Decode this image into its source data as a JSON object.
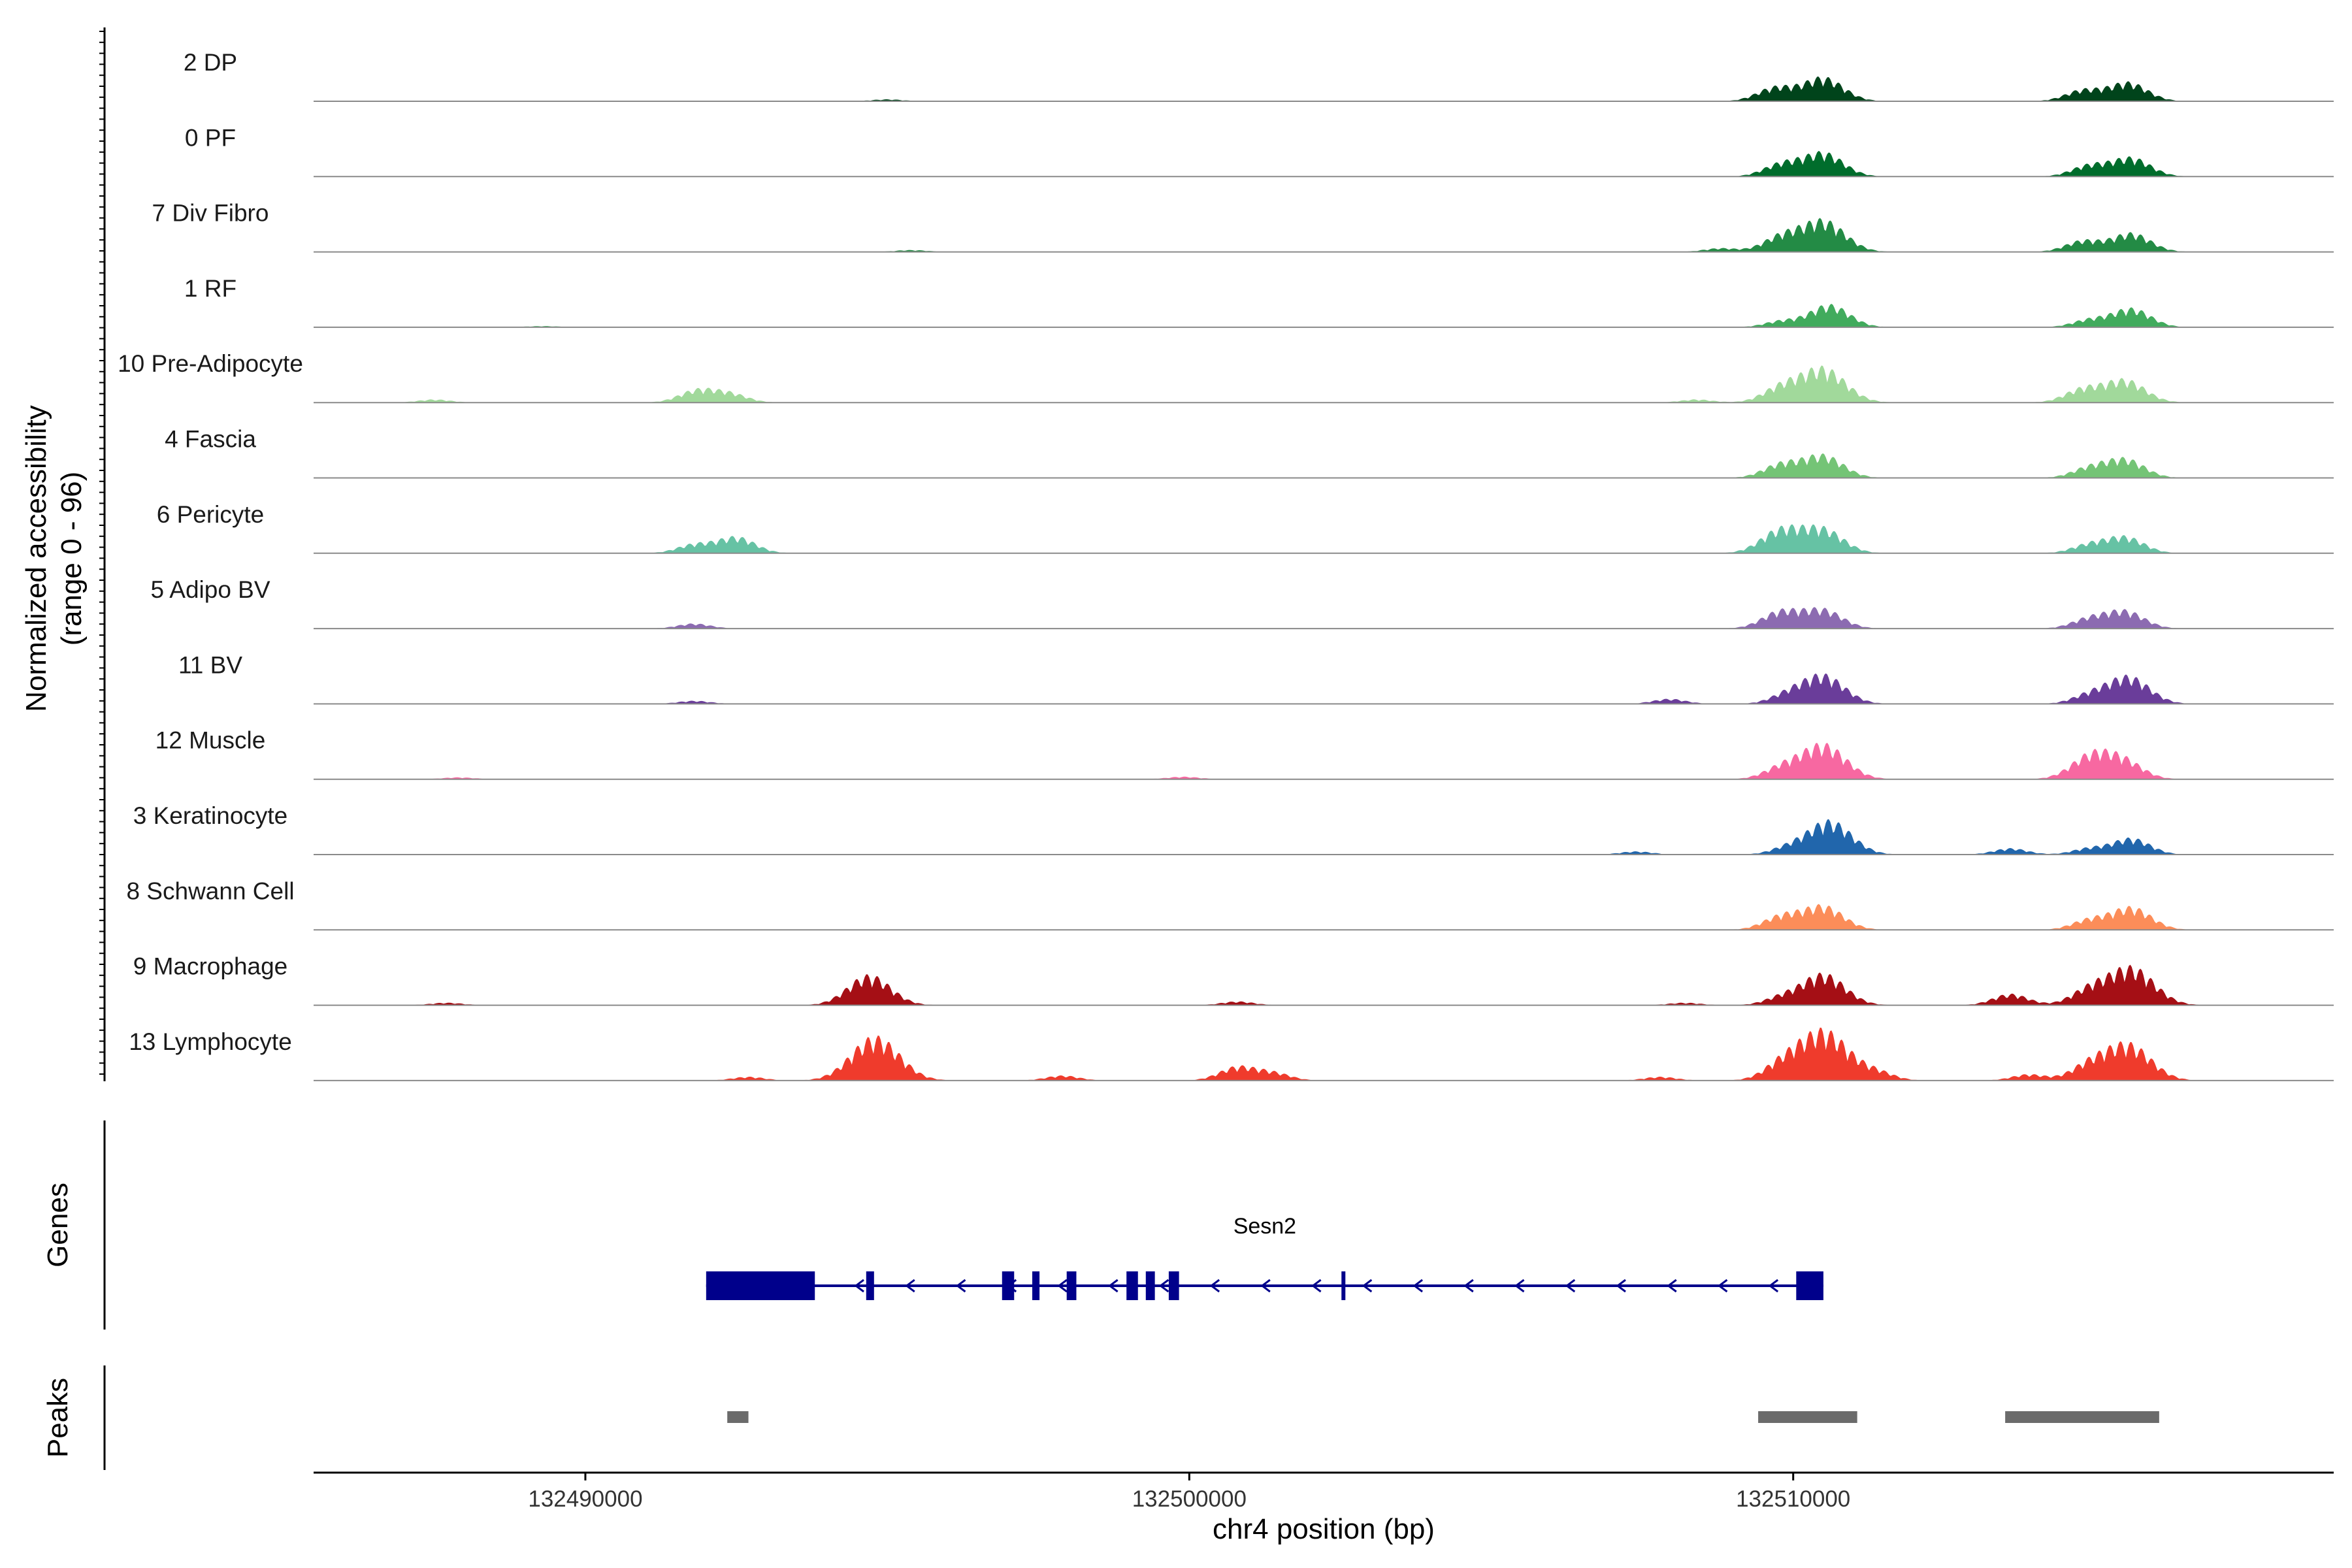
{
  "chart_data": {
    "type": "area",
    "ylabel": "Normalized accessibility",
    "ylabel_range": "(range 0 - 96)",
    "ylim": [
      0,
      96
    ],
    "xlabel": "chr4 position (bp)",
    "xlim": [
      132485500,
      132518950
    ],
    "x_ticks": [
      132490000,
      132500000,
      132510000
    ],
    "x_tick_labels": [
      "132490000",
      "132500000",
      "132510000"
    ],
    "tracks": [
      {
        "name": "2 DP",
        "color": "#00441b",
        "peaks": [
          [
            132495000,
            3
          ],
          [
            132509700,
            22
          ],
          [
            132510500,
            38
          ],
          [
            132514800,
            18
          ],
          [
            132515550,
            30
          ]
        ]
      },
      {
        "name": "0 PF",
        "color": "#006d2c",
        "peaks": [
          [
            132509800,
            20
          ],
          [
            132510500,
            38
          ],
          [
            132514900,
            18
          ],
          [
            132515600,
            30
          ]
        ]
      },
      {
        "name": "7 Div Fibro",
        "color": "#238b45",
        "peaks": [
          [
            132495400,
            3
          ],
          [
            132508800,
            6
          ],
          [
            132509800,
            24
          ],
          [
            132510500,
            50
          ],
          [
            132514800,
            18
          ],
          [
            132515600,
            30
          ]
        ]
      },
      {
        "name": "1 RF",
        "color": "#41ab5d",
        "peaks": [
          [
            132489300,
            2
          ],
          [
            132509800,
            10
          ],
          [
            132510600,
            36
          ],
          [
            132514900,
            12
          ],
          [
            132515600,
            30
          ]
        ]
      },
      {
        "name": "10 Pre-Adipocyte",
        "color": "#a1d99b",
        "peaks": [
          [
            132487500,
            5
          ],
          [
            132491850,
            20
          ],
          [
            132492400,
            14
          ],
          [
            132508400,
            5
          ],
          [
            132509800,
            24
          ],
          [
            132510500,
            55
          ],
          [
            132514800,
            22
          ],
          [
            132515500,
            36
          ]
        ]
      },
      {
        "name": "4 Fascia",
        "color": "#74c476",
        "peaks": [
          [
            132509800,
            22
          ],
          [
            132510500,
            36
          ],
          [
            132514900,
            16
          ],
          [
            132515500,
            30
          ]
        ]
      },
      {
        "name": "6 Pericyte",
        "color": "#66c2a4",
        "peaks": [
          [
            132491800,
            14
          ],
          [
            132492500,
            26
          ],
          [
            132509800,
            38
          ],
          [
            132510500,
            38
          ],
          [
            132514900,
            14
          ],
          [
            132515500,
            26
          ]
        ]
      },
      {
        "name": "5 Adipo BV",
        "color": "#8c6bb1",
        "peaks": [
          [
            132491800,
            8
          ],
          [
            132509800,
            28
          ],
          [
            132510500,
            30
          ],
          [
            132514900,
            16
          ],
          [
            132515500,
            28
          ]
        ]
      },
      {
        "name": "11 BV",
        "color": "#6a3d9a",
        "peaks": [
          [
            132491800,
            5
          ],
          [
            132507950,
            8
          ],
          [
            132509900,
            14
          ],
          [
            132510500,
            46
          ],
          [
            132514900,
            14
          ],
          [
            132515550,
            44
          ]
        ]
      },
      {
        "name": "12 Muscle",
        "color": "#f768a1",
        "peaks": [
          [
            132487900,
            3
          ],
          [
            132499900,
            4
          ],
          [
            132509800,
            18
          ],
          [
            132510500,
            56
          ],
          [
            132514950,
            40
          ],
          [
            132515500,
            26
          ]
        ]
      },
      {
        "name": "3 Keratinocyte",
        "color": "#2166ac",
        "peaks": [
          [
            132507400,
            5
          ],
          [
            132509900,
            10
          ],
          [
            132510600,
            54
          ],
          [
            132513600,
            10
          ],
          [
            132514900,
            10
          ],
          [
            132515600,
            26
          ]
        ]
      },
      {
        "name": "8 Schwann Cell",
        "color": "#fc8d59",
        "peaks": [
          [
            132509800,
            22
          ],
          [
            132510500,
            38
          ],
          [
            132514900,
            16
          ],
          [
            132515600,
            36
          ]
        ]
      },
      {
        "name": "9 Macrophage",
        "color": "#a50f15",
        "peaks": [
          [
            132487700,
            4
          ],
          [
            132494700,
            48
          ],
          [
            132500800,
            6
          ],
          [
            132508200,
            4
          ],
          [
            132509800,
            12
          ],
          [
            132510500,
            50
          ],
          [
            132513600,
            18
          ],
          [
            132514900,
            24
          ],
          [
            132515600,
            60
          ]
        ]
      },
      {
        "name": "13 Lymphocyte",
        "color": "#ef3b2c",
        "peaks": [
          [
            132492700,
            6
          ],
          [
            132494800,
            70
          ],
          [
            132497900,
            8
          ],
          [
            132500800,
            22
          ],
          [
            132501400,
            12
          ],
          [
            132507800,
            6
          ],
          [
            132509800,
            22
          ],
          [
            132510500,
            80
          ],
          [
            132511400,
            12
          ],
          [
            132513900,
            10
          ],
          [
            132514900,
            24
          ],
          [
            132515550,
            58
          ]
        ]
      }
    ],
    "genes": {
      "title": "Genes",
      "name": "Sesn2",
      "strand": "-",
      "color": "#00008b",
      "start": 132492000,
      "end": 132510500,
      "exons": [
        [
          132492000,
          132493800
        ],
        [
          132494650,
          132494780
        ],
        [
          132496900,
          132497100
        ],
        [
          132497400,
          132497520
        ],
        [
          132497970,
          132498130
        ],
        [
          132498960,
          132499150
        ],
        [
          132499280,
          132499430
        ],
        [
          132499660,
          132499830
        ],
        [
          132502520,
          132502560
        ],
        [
          132510050,
          132510500
        ]
      ]
    },
    "peaks_track": {
      "title": "Peaks",
      "color": "#6b6b6b",
      "regions": [
        [
          132492350,
          132492700
        ],
        [
          132509420,
          132511060
        ],
        [
          132513510,
          132516060
        ]
      ]
    }
  }
}
